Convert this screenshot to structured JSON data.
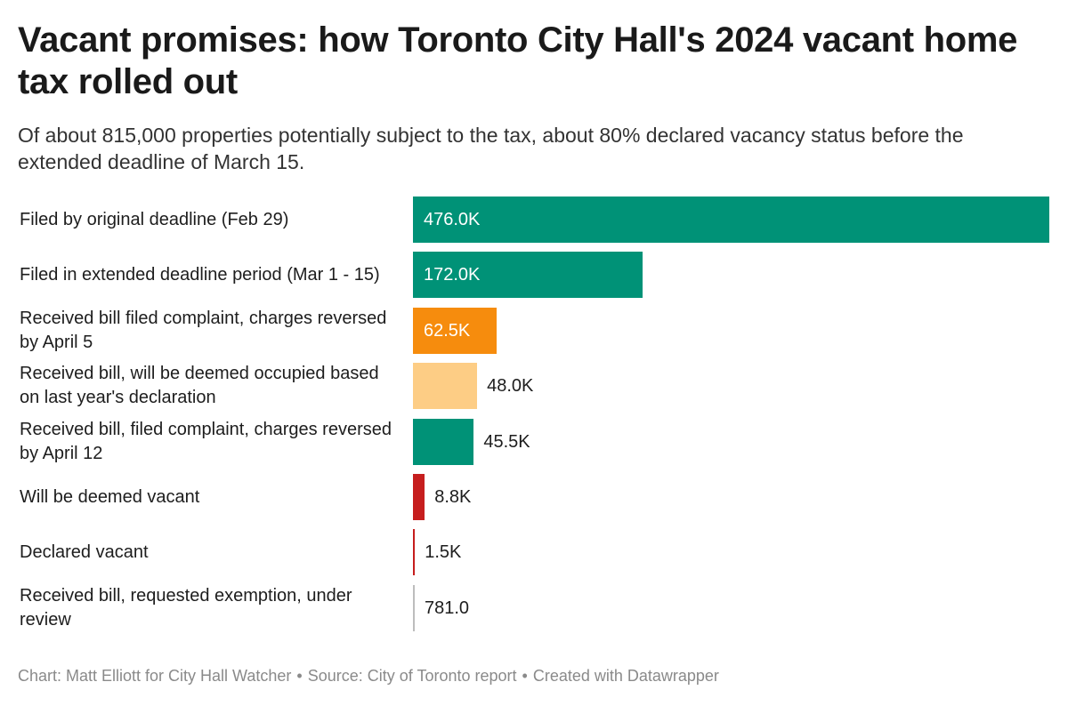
{
  "title": "Vacant promises: how Toronto City Hall's 2024 vacant home tax rolled out",
  "subtitle": "Of about 815,000 properties potentially subject to the tax, about 80% declared vacancy status before the extended deadline of March 15.",
  "chart_data": {
    "type": "bar",
    "orientation": "horizontal",
    "title": "Vacant promises: how Toronto City Hall's 2024 vacant home tax rolled out",
    "subtitle": "Of about 815,000 properties potentially subject to the tax, about 80% declared vacancy status before the extended deadline of March 15.",
    "xlim": [
      0,
      476000
    ],
    "categories": [
      "Filed by original deadline (Feb 29)",
      "Filed in extended deadline period (Mar 1 - 15)",
      "Received bill filed complaint, charges reversed by April 5",
      "Received bill, will be deemed occupied based on last year's declaration",
      "Received bill, filed complaint, charges reversed by April 12",
      "Will be deemed vacant",
      "Declared vacant",
      "Received bill, requested exemption, under review"
    ],
    "values": [
      476000,
      172000,
      62500,
      48000,
      45500,
      8800,
      1500,
      781
    ],
    "value_labels": [
      "476.0K",
      "172.0K",
      "62.5K",
      "48.0K",
      "45.5K",
      "8.8K",
      "1.5K",
      "781.0"
    ],
    "colors": [
      "#009277",
      "#009277",
      "#f68c0d",
      "#fdcd85",
      "#009277",
      "#c61e1e",
      "#c61e1e",
      "#bdbdbd"
    ],
    "label_inside": [
      true,
      true,
      true,
      false,
      false,
      false,
      false,
      false
    ]
  },
  "footer": {
    "credit": "Chart: Matt Elliott for City Hall Watcher",
    "source": "Source: City of Toronto report",
    "tool": "Created with Datawrapper",
    "separator": "•"
  }
}
